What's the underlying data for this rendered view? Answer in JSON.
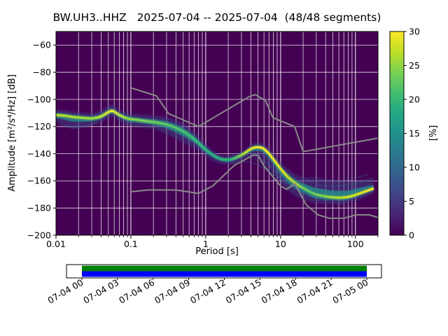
{
  "chart_data": {
    "type": "heatmap",
    "subtype": "ppsd-probability-density",
    "title": "BW.UH3..HHZ   2025-07-04 -- 2025-07-04  (48/48 segments)",
    "station_id": "BW.UH3..HHZ",
    "date_start": "2025-07-04",
    "date_end": "2025-07-04",
    "segments": "48/48",
    "xlabel": "Period [s]",
    "ylabel": "Amplitude [m²/s⁴/Hz] [dB]",
    "colorbar_label": "[%]",
    "x_scale": "log",
    "xlim": [
      0.01,
      200
    ],
    "ylim": [
      -200,
      -50
    ],
    "grid": true,
    "grid_color": "#ffffff",
    "background_color": "#440154",
    "xticks": {
      "values": [
        0.01,
        0.1,
        1,
        10,
        100
      ],
      "labels": [
        "0.01",
        "0.1",
        "1",
        "10",
        "100"
      ]
    },
    "yticks": {
      "values": [
        -60,
        -80,
        -100,
        -120,
        -140,
        -160,
        -180,
        -200
      ],
      "labels": [
        "−60",
        "−80",
        "−100",
        "−120",
        "−140",
        "−160",
        "−180",
        "−200"
      ]
    },
    "colorbar": {
      "min": 0,
      "max": 30,
      "ticks": [
        0,
        5,
        10,
        15,
        20,
        25,
        30
      ],
      "labels": [
        "0",
        "5",
        "10",
        "15",
        "20",
        "25",
        "30"
      ],
      "cmap_name": "viridis",
      "cmap_stops": [
        "#440154",
        "#482475",
        "#414487",
        "#355f8d",
        "#2a788e",
        "#21918c",
        "#22a884",
        "#44bf70",
        "#7ad151",
        "#bddf26",
        "#fde725"
      ]
    },
    "psd_distribution": {
      "periods": [
        0.01,
        0.013,
        0.017,
        0.022,
        0.03,
        0.04,
        0.055,
        0.07,
        0.09,
        0.12,
        0.16,
        0.22,
        0.3,
        0.4,
        0.55,
        0.75,
        1.0,
        1.4,
        1.9,
        2.5,
        3.2,
        4.0,
        4.8,
        5.8,
        7.0,
        8.5,
        10.5,
        13,
        17,
        22,
        28,
        36,
        48,
        65,
        85,
        110,
        140,
        175
      ],
      "mode_db": [
        -111.5,
        -112,
        -113,
        -113.5,
        -114,
        -112.5,
        -108.5,
        -111.5,
        -114,
        -115,
        -116,
        -117,
        -118.5,
        -121,
        -125,
        -130.5,
        -137,
        -142.5,
        -144.5,
        -143,
        -140,
        -136.5,
        -135.2,
        -136,
        -140,
        -146,
        -152.5,
        -158,
        -163,
        -166.5,
        -169.5,
        -171,
        -172,
        -172.3,
        -171.5,
        -169.5,
        -167.5,
        -165.5
      ],
      "spread_hi": [
        4,
        4,
        4,
        4,
        4,
        4.5,
        4.5,
        4,
        4,
        4,
        4.5,
        5,
        5.5,
        6,
        6,
        5,
        4,
        3,
        3,
        3,
        3,
        3,
        3.5,
        3.5,
        4,
        4.5,
        5,
        6,
        7,
        9,
        11,
        12,
        12,
        12,
        11,
        10,
        8,
        6
      ],
      "spread_lo": [
        5,
        7,
        8,
        7,
        5,
        4.5,
        4.5,
        4.5,
        5,
        5,
        5,
        5.5,
        7,
        8,
        8,
        6,
        5,
        4,
        3.5,
        4,
        4.5,
        5,
        6,
        7,
        8,
        9,
        10,
        10,
        9,
        8,
        7,
        6,
        5,
        5,
        4.5,
        4.5,
        4,
        4
      ],
      "haze_color": "#414487",
      "mid_color": "#21918c",
      "wisp_color": "#31688e",
      "core_gradient": [
        {
          "at": 0.0,
          "color": "#c8e020"
        },
        {
          "at": 0.111,
          "color": "#a0da39"
        },
        {
          "at": 0.172,
          "color": "#fde725"
        },
        {
          "at": 0.222,
          "color": "#90d743"
        },
        {
          "at": 0.325,
          "color": "#6ece58"
        },
        {
          "at": 0.413,
          "color": "#44bf70"
        },
        {
          "at": 0.483,
          "color": "#28ae80"
        },
        {
          "at": 0.545,
          "color": "#35b779"
        },
        {
          "at": 0.591,
          "color": "#c8e020"
        },
        {
          "at": 0.623,
          "color": "#fde725"
        },
        {
          "at": 0.661,
          "color": "#fde725"
        },
        {
          "at": 0.707,
          "color": "#e5e419"
        },
        {
          "at": 0.745,
          "color": "#aadc32"
        },
        {
          "at": 0.786,
          "color": "#5ec962"
        },
        {
          "at": 0.86,
          "color": "#aadc32"
        },
        {
          "at": 0.907,
          "color": "#d8e219"
        },
        {
          "at": 1.0,
          "color": "#fde725"
        }
      ],
      "wisps": [
        [
          [
            3.5,
            -142
          ],
          [
            5,
            -145
          ],
          [
            7,
            -151
          ],
          [
            10,
            -158
          ],
          [
            14,
            -164
          ],
          [
            20,
            -169
          ],
          [
            28,
            -172.5
          ]
        ],
        [
          [
            4,
            -140
          ],
          [
            6,
            -146
          ],
          [
            9,
            -154
          ],
          [
            13,
            -161
          ],
          [
            19,
            -167
          ],
          [
            26,
            -171
          ]
        ],
        [
          [
            4.5,
            -139
          ],
          [
            7,
            -148
          ],
          [
            11,
            -157
          ],
          [
            16,
            -164
          ],
          [
            24,
            -170
          ],
          [
            34,
            -174
          ]
        ],
        [
          [
            2.2,
            -147
          ],
          [
            3.5,
            -146
          ],
          [
            5,
            -148
          ],
          [
            8,
            -155
          ],
          [
            12,
            -162
          ]
        ],
        [
          [
            25,
            -157
          ],
          [
            40,
            -159
          ],
          [
            65,
            -160
          ],
          [
            100,
            -158
          ],
          [
            150,
            -155
          ]
        ],
        [
          [
            30,
            -163
          ],
          [
            50,
            -164
          ],
          [
            80,
            -163
          ],
          [
            130,
            -160
          ],
          [
            175,
            -158
          ]
        ],
        [
          [
            0.011,
            -118
          ],
          [
            0.016,
            -121
          ],
          [
            0.024,
            -120
          ],
          [
            0.035,
            -117
          ]
        ]
      ]
    },
    "noise_models": {
      "color": "#8a8a8a",
      "nhnm": [
        [
          0.1,
          -91.5
        ],
        [
          0.22,
          -97.4
        ],
        [
          0.32,
          -110.5
        ],
        [
          0.8,
          -120.0
        ],
        [
          3.8,
          -98.0
        ],
        [
          4.6,
          -96.5
        ],
        [
          6.3,
          -101.0
        ],
        [
          7.9,
          -113.5
        ],
        [
          15.4,
          -120.0
        ],
        [
          20.0,
          -138.5
        ],
        [
          200.0,
          -128.5
        ]
      ],
      "nlnm": [
        [
          0.1,
          -168.0
        ],
        [
          0.17,
          -166.7
        ],
        [
          0.4,
          -166.7
        ],
        [
          0.8,
          -169.2
        ],
        [
          1.24,
          -163.7
        ],
        [
          2.4,
          -148.6
        ],
        [
          4.3,
          -141.1
        ],
        [
          5.0,
          -141.1
        ],
        [
          6.0,
          -149.0
        ],
        [
          10.0,
          -163.8
        ],
        [
          12.0,
          -166.2
        ],
        [
          15.6,
          -162.1
        ],
        [
          21.9,
          -177.5
        ],
        [
          31.6,
          -185.0
        ],
        [
          45.0,
          -187.5
        ],
        [
          70.0,
          -187.5
        ],
        [
          101.0,
          -185.0
        ],
        [
          154.0,
          -185.0
        ],
        [
          200.0,
          -187.0
        ]
      ]
    },
    "timeline": {
      "tick_labels": [
        "07-04 00",
        "07-04 03",
        "07-04 06",
        "07-04 09",
        "07-04 12",
        "07-04 15",
        "07-04 18",
        "07-04 21",
        "07-05 00"
      ],
      "coverage_color": "#008000",
      "extent_color": "#0000ff",
      "frame_color": "#000000",
      "background": "#ffffff"
    }
  }
}
